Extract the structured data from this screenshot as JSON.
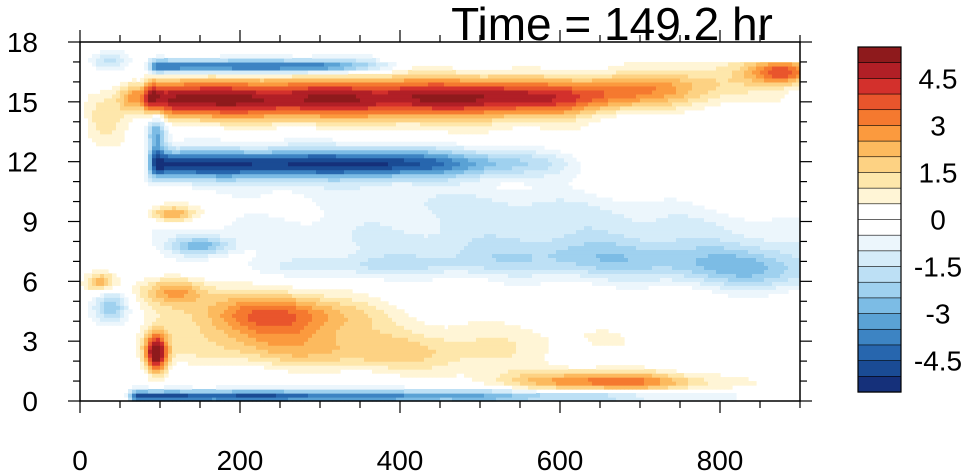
{
  "chart_data": {
    "type": "heatmap",
    "title": "Time = 149.2 hr",
    "xlim": [
      0,
      900
    ],
    "ylim": [
      0,
      18
    ],
    "x_ticks": [
      0,
      200,
      400,
      600,
      800
    ],
    "x_tick_labels": [
      "0",
      "200",
      "400",
      "600",
      "800"
    ],
    "y_ticks": [
      0,
      3,
      6,
      9,
      12,
      15,
      18
    ],
    "y_tick_labels": [
      "0",
      "3",
      "6",
      "9",
      "12",
      "15",
      "18"
    ],
    "colorbar": {
      "levels": [
        5.5,
        5.0,
        4.5,
        4.0,
        3.5,
        3.0,
        2.5,
        2.0,
        1.5,
        1.0,
        0.5,
        0.0,
        -0.5,
        -1.0,
        -1.5,
        -2.0,
        -2.5,
        -3.0,
        -3.5,
        -4.0,
        -4.5,
        -5.0,
        -5.5
      ],
      "colors": [
        "#8e1a1c",
        "#b11f26",
        "#d3302c",
        "#e9552c",
        "#f5792f",
        "#fb9a3e",
        "#fcba5e",
        "#fdd283",
        "#fee7ab",
        "#fff5d6",
        "#ffffff",
        "#ffffff",
        "#ecf6fc",
        "#d5ecf9",
        "#bde0f5",
        "#9fd1ef",
        "#7cbce5",
        "#5aa2d5",
        "#3d84c3",
        "#2766ae",
        "#1a4b94",
        "#15307a"
      ],
      "tick_values": [
        4.5,
        3,
        1.5,
        0,
        -1.5,
        -3,
        -4.5
      ],
      "tick_labels": [
        "4.5",
        "3",
        "1.5",
        "0",
        "-1.5",
        "-3",
        "-4.5"
      ]
    },
    "features": [
      {
        "kind": "band",
        "x0": 90,
        "x1": 900,
        "y_center": 15.2,
        "half_width": 1.1,
        "value": 5.2,
        "fade_start": 520
      },
      {
        "kind": "band",
        "x0": 95,
        "x1": 600,
        "y_center": 11.9,
        "half_width": 0.8,
        "value": -5.2,
        "fade_start": 380
      },
      {
        "kind": "band",
        "x0": 95,
        "x1": 380,
        "y_center": 16.8,
        "half_width": 0.4,
        "value": -4.5,
        "fade_start": 300
      },
      {
        "kind": "band",
        "x0": 70,
        "x1": 900,
        "y_center": 0.25,
        "half_width": 0.35,
        "value": -4.8,
        "fade_start": 200
      },
      {
        "kind": "blob",
        "x": 240,
        "y": 4.2,
        "sx": 110,
        "sy": 1.3,
        "value": 3.6
      },
      {
        "kind": "blob",
        "x": 380,
        "y": 2.6,
        "sx": 220,
        "sy": 1.0,
        "value": 1.8
      },
      {
        "kind": "blob",
        "x": 660,
        "y": 1.0,
        "sx": 120,
        "sy": 0.5,
        "value": 3.2
      },
      {
        "kind": "blob",
        "x": 95,
        "y": 2.4,
        "sx": 14,
        "sy": 1.0,
        "value": 5.5
      },
      {
        "kind": "blob",
        "x": 120,
        "y": 5.6,
        "sx": 40,
        "sy": 0.7,
        "value": 2.4
      },
      {
        "kind": "blob",
        "x": 500,
        "y": 9.0,
        "sx": 300,
        "sy": 2.0,
        "value": -1.2
      },
      {
        "kind": "blob",
        "x": 700,
        "y": 7.2,
        "sx": 200,
        "sy": 1.3,
        "value": -1.9
      },
      {
        "kind": "blob",
        "x": 850,
        "y": 6.6,
        "sx": 80,
        "sy": 1.2,
        "value": -1.6
      },
      {
        "kind": "blob",
        "x": 360,
        "y": 6.8,
        "sx": 160,
        "sy": 0.6,
        "value": -1.4
      },
      {
        "kind": "blob",
        "x": 150,
        "y": 7.8,
        "sx": 40,
        "sy": 0.5,
        "value": -2.8
      },
      {
        "kind": "blob",
        "x": 40,
        "y": 4.8,
        "sx": 22,
        "sy": 0.8,
        "value": -2.5
      },
      {
        "kind": "blob",
        "x": 25,
        "y": 6.0,
        "sx": 20,
        "sy": 0.5,
        "value": 2.5
      },
      {
        "kind": "blob",
        "x": 30,
        "y": 14.0,
        "sx": 28,
        "sy": 1.2,
        "value": 1.5
      },
      {
        "kind": "blob",
        "x": 70,
        "y": 15.3,
        "sx": 20,
        "sy": 0.7,
        "value": 2.8
      },
      {
        "kind": "blob",
        "x": 95,
        "y": 13.5,
        "sx": 12,
        "sy": 1.3,
        "value": -3.2
      },
      {
        "kind": "blob",
        "x": 35,
        "y": 17.1,
        "sx": 25,
        "sy": 0.5,
        "value": -1.8
      },
      {
        "kind": "blob",
        "x": 115,
        "y": 9.4,
        "sx": 30,
        "sy": 0.4,
        "value": 2.6
      },
      {
        "kind": "blob",
        "x": 880,
        "y": 16.5,
        "sx": 40,
        "sy": 0.6,
        "value": 3.3
      }
    ]
  }
}
